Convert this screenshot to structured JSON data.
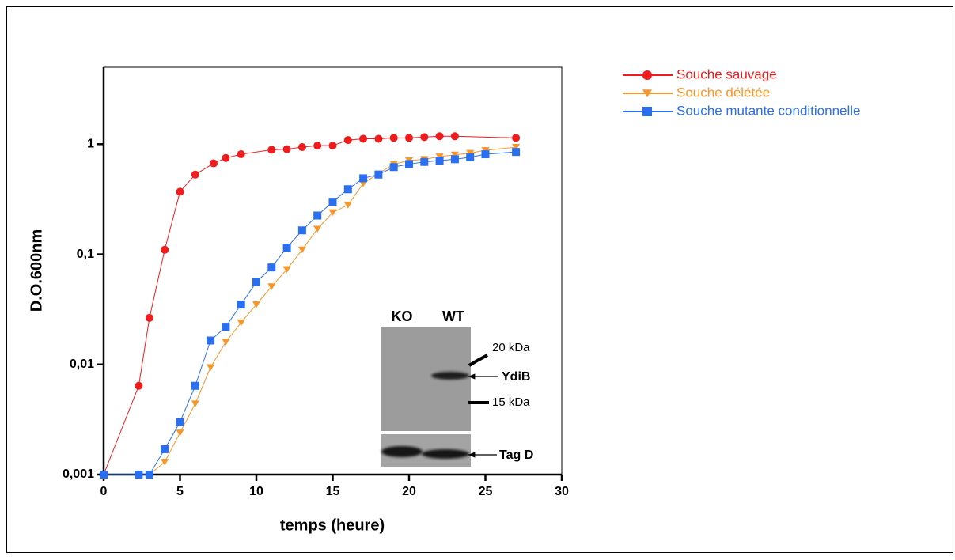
{
  "chart_data": {
    "type": "line",
    "x_label": "temps (heure)",
    "y_label": "D.O.600nm",
    "log_y": true,
    "xlim": [
      0,
      30
    ],
    "xticks": [
      0,
      5,
      10,
      15,
      20,
      25,
      30
    ],
    "ylim": [
      0.001,
      5
    ],
    "yticks": [
      {
        "value": 0.001,
        "label": "0,001"
      },
      {
        "value": 0.01,
        "label": "0,01"
      },
      {
        "value": 0.1,
        "label": "0,1"
      },
      1
    ],
    "legend": "outside-right",
    "series": [
      {
        "name": "Souche sauvage",
        "color": "#ee1c1c",
        "marker": "circle",
        "x": [
          0,
          2.3,
          3,
          4,
          5,
          6,
          7.2,
          8,
          9,
          11,
          12,
          13,
          14,
          15,
          16,
          17,
          18,
          19,
          20,
          21,
          22,
          23,
          27
        ],
        "values": [
          0.001,
          0.0064,
          0.0265,
          0.11,
          0.37,
          0.53,
          0.67,
          0.75,
          0.81,
          0.89,
          0.9,
          0.94,
          0.97,
          0.97,
          1.09,
          1.12,
          1.12,
          1.14,
          1.14,
          1.16,
          1.18,
          1.18,
          1.14
        ]
      },
      {
        "name": "Souche délétée",
        "color": "#f7962a",
        "marker": "triangle-down",
        "x": [
          0,
          2.3,
          3,
          4,
          5,
          6,
          7,
          8,
          9,
          10,
          11,
          12,
          13,
          14,
          15,
          16,
          17,
          18,
          19,
          20,
          21,
          22,
          23,
          24,
          25,
          27
        ],
        "values": [
          0.001,
          0.001,
          0.001,
          0.0013,
          0.0024,
          0.0044,
          0.0094,
          0.016,
          0.024,
          0.035,
          0.051,
          0.073,
          0.11,
          0.17,
          0.24,
          0.28,
          0.44,
          0.54,
          0.66,
          0.71,
          0.73,
          0.77,
          0.8,
          0.83,
          0.88,
          0.94
        ]
      },
      {
        "name": "Souche mutante conditionnelle",
        "color": "#2a6ff0",
        "marker": "square",
        "x": [
          0,
          2.3,
          3,
          4,
          5,
          6,
          7,
          8,
          9,
          10,
          11,
          12,
          13,
          14,
          15,
          16,
          17,
          18,
          19,
          20,
          21,
          22,
          23,
          24,
          25,
          27
        ],
        "values": [
          0.001,
          0.001,
          0.001,
          0.0017,
          0.003,
          0.0064,
          0.0165,
          0.022,
          0.035,
          0.056,
          0.076,
          0.115,
          0.165,
          0.225,
          0.3,
          0.39,
          0.49,
          0.53,
          0.62,
          0.66,
          0.69,
          0.71,
          0.73,
          0.76,
          0.81,
          0.85
        ]
      }
    ],
    "inset": {
      "lanes": [
        "KO",
        "WT"
      ],
      "markers": [
        "20 kDa",
        "15 kDa"
      ],
      "labels": [
        "YdiB",
        "Tag D"
      ]
    }
  }
}
